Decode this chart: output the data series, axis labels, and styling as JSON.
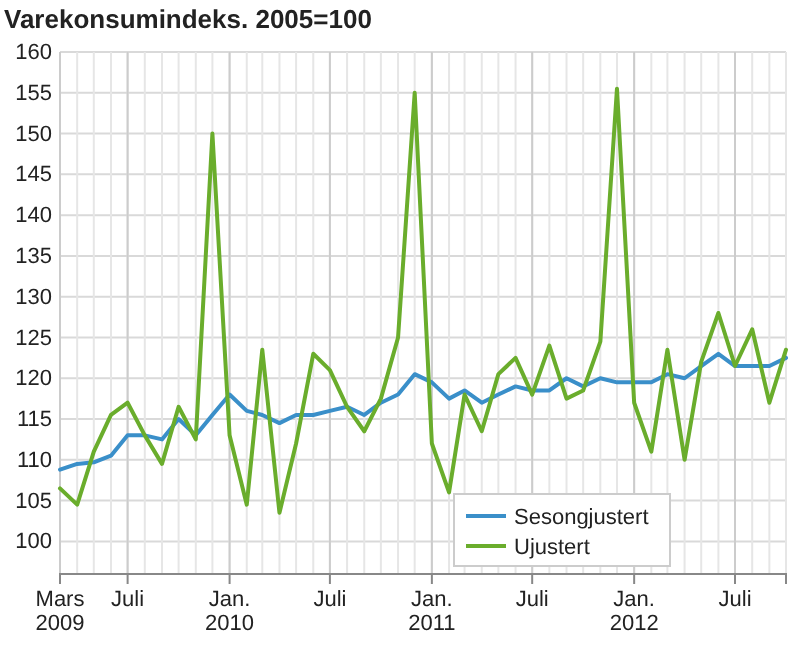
{
  "chart_data": {
    "type": "line",
    "title": "Varekonsumindeks. 2005=100",
    "x": [
      "2009-03",
      "2009-04",
      "2009-05",
      "2009-06",
      "2009-07",
      "2009-08",
      "2009-09",
      "2009-10",
      "2009-11",
      "2009-12",
      "2010-01",
      "2010-02",
      "2010-03",
      "2010-04",
      "2010-05",
      "2010-06",
      "2010-07",
      "2010-08",
      "2010-09",
      "2010-10",
      "2010-11",
      "2010-12",
      "2011-01",
      "2011-02",
      "2011-03",
      "2011-04",
      "2011-05",
      "2011-06",
      "2011-07",
      "2011-08",
      "2011-09",
      "2011-10",
      "2011-11",
      "2011-12",
      "2012-01",
      "2012-02",
      "2012-03",
      "2012-04",
      "2012-05",
      "2012-06",
      "2012-07",
      "2012-08",
      "2012-09",
      "2012-10"
    ],
    "series": [
      {
        "name": "Sesongjustert",
        "color": "#3a8fc9",
        "values": [
          108.8,
          109.5,
          109.7,
          110.5,
          113,
          113,
          112.5,
          115,
          113,
          115.5,
          118,
          116,
          115.5,
          114.5,
          115.5,
          115.5,
          116,
          116.5,
          115.5,
          117,
          118,
          120.5,
          119.5,
          117.5,
          118.5,
          117,
          118,
          119,
          118.5,
          118.5,
          120,
          119,
          120,
          119.5,
          119.5,
          119.5,
          120.5,
          120,
          121.5,
          123,
          121.5,
          121.5,
          121.5,
          122.5
        ]
      },
      {
        "name": "Ujustert",
        "color": "#6aad2c",
        "values": [
          106.5,
          104.5,
          111,
          115.5,
          117,
          113,
          109.5,
          116.5,
          112.5,
          150,
          113,
          104.5,
          123.5,
          103.5,
          112,
          123,
          121,
          116.5,
          113.5,
          117.5,
          125,
          155,
          112,
          106,
          118,
          113.5,
          120.5,
          122.5,
          118,
          124,
          117.5,
          118.5,
          124.5,
          155.5,
          117,
          111,
          123.5,
          110,
          122,
          128,
          121.5,
          126,
          117,
          123.5
        ]
      }
    ],
    "xlim": [
      "2009-03",
      "2012-10"
    ],
    "xticks": [
      {
        "value": "2009-03",
        "label": "Mars 2009"
      },
      {
        "value": "2009-07",
        "label": "Juli"
      },
      {
        "value": "2010-01",
        "label": "Jan. 2010"
      },
      {
        "value": "2010-07",
        "label": "Juli"
      },
      {
        "value": "2011-01",
        "label": "Jan. 2011"
      },
      {
        "value": "2011-07",
        "label": "Juli"
      },
      {
        "value": "2012-01",
        "label": "Jan. 2012"
      },
      {
        "value": "2012-07",
        "label": "Juli"
      }
    ],
    "ylim": [
      96,
      160
    ],
    "yticks": [
      100,
      105,
      110,
      115,
      120,
      125,
      130,
      135,
      140,
      145,
      150,
      155,
      160
    ],
    "grid": true,
    "legend": "bottom right"
  }
}
